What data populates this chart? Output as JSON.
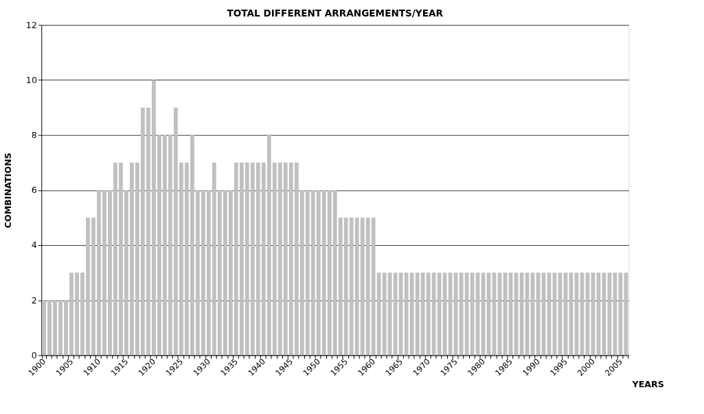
{
  "chart_data": {
    "type": "bar",
    "title": "TOTAL DIFFERENT ARRANGEMENTS/YEAR",
    "xlabel": "YEARS",
    "ylabel": "COMBINATIONS",
    "categories": [
      "1900",
      null,
      null,
      null,
      null,
      "1905",
      null,
      null,
      null,
      null,
      "1910",
      null,
      null,
      null,
      null,
      "1915",
      null,
      null,
      null,
      null,
      "1920",
      null,
      null,
      null,
      null,
      "1925",
      null,
      null,
      null,
      null,
      "1930",
      null,
      null,
      null,
      null,
      "1935",
      null,
      null,
      null,
      null,
      "1940",
      null,
      null,
      null,
      null,
      "1945",
      null,
      null,
      null,
      null,
      "1950",
      null,
      null,
      null,
      null,
      "1955",
      null,
      null,
      null,
      null,
      "1960",
      null,
      null,
      null,
      null,
      "1965",
      null,
      null,
      null,
      null,
      "1970",
      null,
      null,
      null,
      null,
      "1975",
      null,
      null,
      null,
      null,
      "1980",
      null,
      null,
      null,
      null,
      "1985",
      null,
      null,
      null,
      null,
      "1990",
      null,
      null,
      null,
      null,
      "1995",
      null,
      null,
      null,
      null,
      "2000",
      null,
      null,
      null,
      null,
      "2005",
      null
    ],
    "values": [
      2,
      2,
      2,
      2,
      2,
      3,
      3,
      3,
      5,
      5,
      6,
      6,
      6,
      7,
      7,
      6,
      7,
      7,
      9,
      9,
      10,
      8,
      8,
      8,
      9,
      7,
      7,
      8,
      6,
      6,
      6,
      7,
      6,
      6,
      6,
      7,
      7,
      7,
      7,
      7,
      7,
      8,
      7,
      7,
      7,
      7,
      7,
      6,
      6,
      6,
      6,
      6,
      6,
      6,
      5,
      5,
      5,
      5,
      5,
      5,
      5,
      3,
      3,
      3,
      3,
      3,
      3,
      3,
      3,
      3,
      3,
      3,
      3,
      3,
      3,
      3,
      3,
      3,
      3,
      3,
      3,
      3,
      3,
      3,
      3,
      3,
      3,
      3,
      3,
      3,
      3,
      3,
      3,
      3,
      3,
      3,
      3,
      3,
      3,
      3,
      3,
      3,
      3,
      3,
      3,
      3,
      3
    ],
    "color": "#c0c0c0",
    "ylim": [
      0,
      12
    ],
    "yticks": [
      0,
      2,
      4,
      6,
      8,
      10,
      12
    ],
    "grid": "y"
  }
}
